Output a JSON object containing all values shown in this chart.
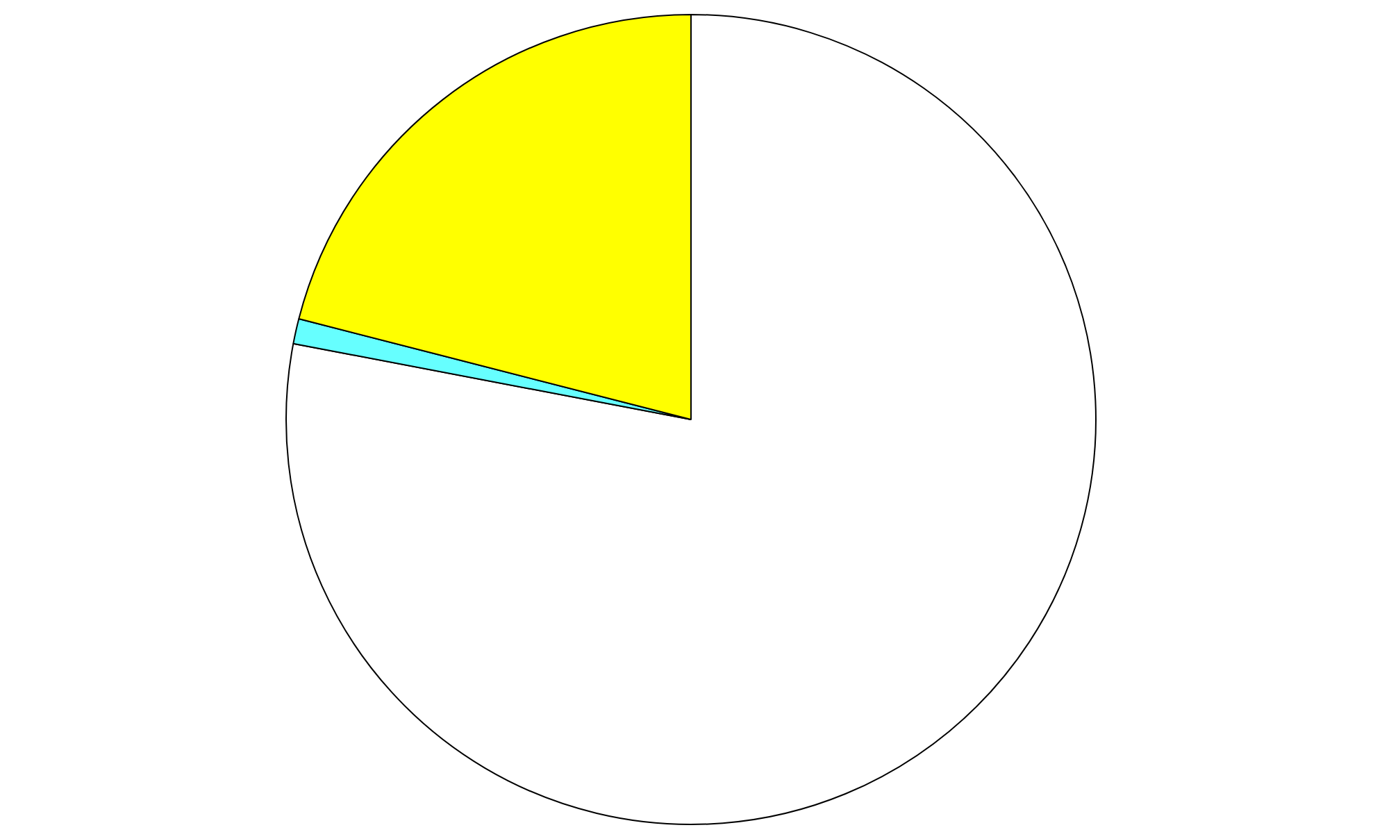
{
  "chart_data": {
    "type": "pie",
    "categories": [
      null,
      null,
      null
    ],
    "values": [
      78,
      1,
      21
    ],
    "colors": [
      "#ffffff",
      "#66ffff",
      "#ffff00"
    ],
    "legend": false
  }
}
